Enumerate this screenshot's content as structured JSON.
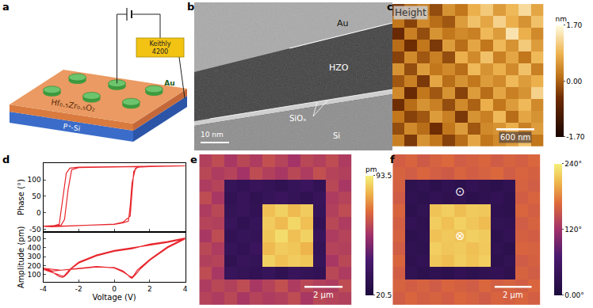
{
  "panel_labels": [
    "a",
    "b",
    "c",
    "d",
    "e",
    "f"
  ],
  "schematic": {
    "electrode": "Au",
    "film": "Hf₀.₅Zr₀.₅O₂",
    "substrate": "P⁺-Si",
    "instrument": [
      "Keithly",
      "4200"
    ]
  },
  "tem": {
    "layers": [
      "Au",
      "HZO",
      "SiOₓ",
      "Si"
    ],
    "scale_bar": "10 nm"
  },
  "chart_data": [
    {
      "type": "heatmap",
      "label": "Height",
      "scale_bar": "600 nm",
      "tick_labels": false,
      "colorbar": {
        "title": "nm",
        "range": [
          -1.7,
          1.7
        ],
        "ticks": [
          {
            "value": 1.7,
            "label": "1.70"
          },
          {
            "value": 0,
            "label": "0.00"
          },
          {
            "value": -1.7,
            "label": "-1.70"
          }
        ]
      },
      "cells": [
        [
          -0.4,
          0.1,
          0.3,
          -0.2,
          0.5,
          0.2,
          0.8,
          1.1,
          0.6,
          0.9,
          1.3,
          0.7
        ],
        [
          0.2,
          -0.3,
          0.4,
          0.1,
          -0.1,
          0.6,
          1.0,
          0.7,
          1.2,
          0.8,
          0.5,
          1.0
        ],
        [
          -0.6,
          0.3,
          -0.2,
          0.5,
          0.2,
          0.4,
          0.3,
          0.9,
          0.6,
          1.4,
          0.8,
          0.4
        ],
        [
          0.1,
          -0.5,
          0.2,
          -0.4,
          0.6,
          0.1,
          0.7,
          0.2,
          0.9,
          0.5,
          1.1,
          0.6
        ],
        [
          -0.3,
          0.4,
          -0.1,
          0.3,
          -0.2,
          0.8,
          0.4,
          1.0,
          0.3,
          0.7,
          0.2,
          0.9
        ],
        [
          0.5,
          -0.2,
          0.6,
          0.2,
          0.4,
          0.1,
          0.9,
          0.5,
          0.8,
          0.4,
          1.0,
          0.3
        ],
        [
          -0.1,
          0.3,
          -0.4,
          0.7,
          0.1,
          0.5,
          0.2,
          0.6,
          0.4,
          0.9,
          0.6,
          0.8
        ],
        [
          0.4,
          -0.6,
          0.2,
          -0.1,
          0.5,
          -0.3,
          0.6,
          0.1,
          0.7,
          0.3,
          0.5,
          1.2
        ],
        [
          -0.5,
          0.1,
          0.5,
          0.3,
          -0.2,
          0.4,
          0.0,
          0.8,
          0.2,
          0.6,
          0.9,
          0.4
        ],
        [
          0.2,
          -0.3,
          -0.1,
          0.6,
          0.3,
          -0.4,
          0.5,
          0.3,
          0.9,
          0.1,
          0.7,
          0.5
        ],
        [
          -0.2,
          0.4,
          0.1,
          -0.5,
          0.2,
          0.6,
          -0.1,
          0.4,
          0.5,
          0.8,
          0.3,
          0.6
        ],
        [
          0.3,
          -0.4,
          0.5,
          0.2,
          -0.3,
          0.1,
          0.7,
          0.2,
          0.4,
          0.6,
          1.0,
          0.2
        ]
      ]
    },
    {
      "type": "line",
      "ylabel": "Phase (°)",
      "color": "#e8262d",
      "tick_labels": "y",
      "xlim": [
        -4,
        4
      ],
      "xticks": [
        -4,
        -2,
        0,
        2,
        4
      ],
      "ylim": [
        -55,
        150
      ],
      "yticks": [
        -50,
        0,
        50,
        100
      ],
      "x": [
        -4,
        -3.5,
        -3,
        -2,
        -1,
        0,
        0.5,
        0.8,
        0.9,
        1.0,
        1.2,
        1.5,
        2,
        3,
        4,
        3.5,
        3,
        2,
        1,
        0,
        -1,
        -2,
        -2.5,
        -2.7,
        -2.9,
        -3.1,
        -3.5,
        -4,
        -3.5,
        -3,
        -2,
        -1,
        0,
        0.5,
        0.9,
        1.0,
        1.1,
        1.3,
        2,
        3,
        4,
        3,
        2,
        1,
        0,
        -1,
        -2,
        -2.4,
        -2.6,
        -2.8,
        -3,
        -4
      ],
      "values": [
        -40,
        -42,
        -40,
        -38,
        -37,
        -35,
        -30,
        -25,
        20,
        90,
        135,
        140,
        141,
        141,
        142,
        142,
        141,
        141,
        140,
        140,
        139,
        138,
        135,
        120,
        40,
        -35,
        -40,
        -41,
        -42,
        -41,
        -39,
        -36,
        -34,
        -28,
        -10,
        60,
        125,
        138,
        140,
        141,
        142,
        141,
        140,
        140,
        139,
        138,
        137,
        130,
        70,
        -20,
        -38,
        -40
      ]
    },
    {
      "type": "line",
      "xlabel": "Voltage (V)",
      "ylabel": "Amplitude (pm)",
      "color": "#e8262d",
      "xlim": [
        -4,
        4
      ],
      "xticks": [
        -4,
        -2,
        0,
        2,
        4
      ],
      "ylim": [
        20,
        570
      ],
      "yticks": [
        100,
        200,
        300,
        400,
        500
      ],
      "x": [
        -4,
        -3.5,
        -3,
        -2,
        -1,
        0,
        0.5,
        0.8,
        0.9,
        1.0,
        1.2,
        1.5,
        2,
        3,
        4,
        3.5,
        3,
        2,
        1,
        0,
        -1,
        -2,
        -2.5,
        -2.7,
        -2.9,
        -3.1,
        -3.5,
        -4,
        -3.5,
        -3,
        -2,
        -1,
        0,
        0.5,
        0.9,
        1.0,
        1.1,
        1.3,
        2,
        3,
        4,
        3,
        2,
        1,
        0,
        -1,
        -2,
        -2.4,
        -2.6,
        -2.8,
        -3,
        -4
      ],
      "values": [
        170,
        160,
        150,
        165,
        185,
        180,
        140,
        90,
        70,
        60,
        100,
        170,
        260,
        400,
        500,
        480,
        460,
        430,
        400,
        370,
        320,
        240,
        160,
        110,
        70,
        80,
        130,
        175,
        140,
        150,
        170,
        190,
        175,
        130,
        80,
        70,
        90,
        150,
        270,
        410,
        510,
        470,
        440,
        390,
        360,
        310,
        230,
        170,
        120,
        80,
        90,
        160
      ]
    },
    {
      "type": "heatmap",
      "scale_bar": "2 μm",
      "tick_labels": false,
      "colorbar": {
        "title": "pm",
        "range": [
          20.5,
          93.5
        ],
        "ticks": [
          93.5,
          20.5
        ]
      },
      "cells": [
        [
          61,
          64,
          59,
          63,
          60,
          65,
          62,
          58,
          63,
          61,
          64,
          60
        ],
        [
          63,
          60,
          62,
          58,
          64,
          61,
          59,
          63,
          60,
          65,
          62,
          61
        ],
        [
          60,
          62,
          33,
          31,
          34,
          32,
          30,
          33,
          35,
          31,
          63,
          59
        ],
        [
          64,
          59,
          31,
          34,
          30,
          33,
          35,
          32,
          30,
          34,
          60,
          62
        ],
        [
          60,
          63,
          32,
          34,
          31,
          85,
          88,
          84,
          87,
          33,
          61,
          64
        ],
        [
          62,
          61,
          34,
          30,
          33,
          87,
          84,
          89,
          85,
          31,
          63,
          60
        ],
        [
          59,
          64,
          31,
          33,
          32,
          86,
          90,
          85,
          88,
          34,
          60,
          62
        ],
        [
          63,
          60,
          33,
          31,
          35,
          84,
          87,
          86,
          83,
          32,
          62,
          61
        ],
        [
          61,
          62,
          30,
          34,
          32,
          88,
          85,
          87,
          86,
          33,
          59,
          63
        ],
        [
          64,
          59,
          34,
          32,
          31,
          33,
          30,
          34,
          32,
          31,
          63,
          60
        ],
        [
          60,
          63,
          61,
          64,
          59,
          62,
          65,
          60,
          63,
          61,
          60,
          64
        ],
        [
          62,
          60,
          63,
          59,
          62,
          60,
          61,
          64,
          59,
          63,
          62,
          61
        ]
      ]
    },
    {
      "type": "heatmap",
      "scale_bar": "2 μm",
      "tick_labels": false,
      "annotations": [
        {
          "text": "⊙",
          "x": 5,
          "y": 2.5
        },
        {
          "text": "⊗",
          "x": 5,
          "y": 6
        }
      ],
      "colorbar": {
        "range": [
          0,
          240
        ],
        "ticks": [
          {
            "value": 240,
            "label": "240°"
          },
          {
            "value": 120,
            "label": "120°"
          },
          {
            "value": 0,
            "label": "0.00°"
          }
        ]
      },
      "cells": [
        [
          158,
          163,
          155,
          161,
          166,
          157,
          160,
          164,
          156,
          162,
          159,
          165
        ],
        [
          162,
          157,
          164,
          159,
          155,
          163,
          158,
          161,
          166,
          157,
          163,
          160
        ],
        [
          160,
          28,
          33,
          25,
          31,
          27,
          35,
          29,
          24,
          32,
          161,
          157
        ],
        [
          156,
          31,
          26,
          34,
          29,
          33,
          25,
          30,
          35,
          27,
          158,
          163
        ],
        [
          163,
          27,
          33,
          214,
          220,
          211,
          218,
          216,
          30,
          26,
          164,
          159
        ],
        [
          159,
          34,
          29,
          219,
          212,
          222,
          215,
          210,
          33,
          31,
          157,
          162
        ],
        [
          161,
          26,
          31,
          213,
          217,
          214,
          221,
          218,
          27,
          34,
          160,
          158
        ],
        [
          157,
          32,
          28,
          220,
          215,
          218,
          212,
          217,
          31,
          25,
          163,
          161
        ],
        [
          164,
          29,
          35,
          216,
          211,
          219,
          214,
          220,
          26,
          33,
          156,
          160
        ],
        [
          158,
          33,
          27,
          31,
          26,
          34,
          28,
          32,
          35,
          29,
          162,
          157
        ],
        [
          162,
          158,
          161,
          156,
          163,
          160,
          157,
          165,
          159,
          162,
          158,
          164
        ],
        [
          157,
          164,
          159,
          162,
          158,
          165,
          161,
          156,
          163,
          160,
          164,
          159
        ]
      ]
    }
  ]
}
